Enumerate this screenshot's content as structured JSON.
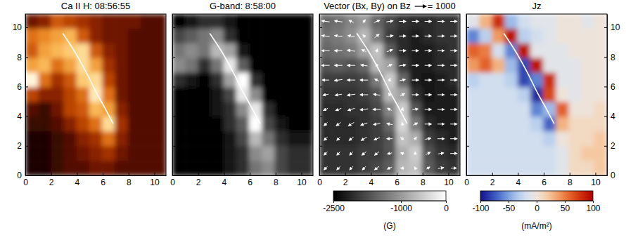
{
  "chart_data": [
    {
      "type": "heatmap",
      "title": "Ca II H: 08:56:55",
      "color": "hot",
      "xlim": [
        0,
        10.9
      ],
      "ylim": [
        0,
        10.9
      ],
      "xticks": [
        0,
        2,
        4,
        6,
        8,
        10
      ],
      "yticks": [
        0,
        2,
        4,
        6,
        8,
        10
      ],
      "cells": [
        [
          0.35,
          0.4,
          0.55,
          0.5,
          0.45,
          0.4,
          0.35,
          0.35,
          0.35,
          0.3,
          0.3
        ],
        [
          0.6,
          0.65,
          0.7,
          0.75,
          0.55,
          0.4,
          0.35,
          0.35,
          0.3,
          0.3,
          0.3
        ],
        [
          0.55,
          0.7,
          0.75,
          0.8,
          0.85,
          0.55,
          0.4,
          0.35,
          0.3,
          0.3,
          0.3
        ],
        [
          0.7,
          0.75,
          0.6,
          0.7,
          0.85,
          0.7,
          0.45,
          0.35,
          0.3,
          0.3,
          0.3
        ],
        [
          0.95,
          0.6,
          0.45,
          0.55,
          0.8,
          0.85,
          0.5,
          0.35,
          0.3,
          0.3,
          0.3
        ],
        [
          0.5,
          0.4,
          0.4,
          0.5,
          0.6,
          0.9,
          0.6,
          0.35,
          0.3,
          0.3,
          0.3
        ],
        [
          0.3,
          0.25,
          0.35,
          0.5,
          0.55,
          0.75,
          0.7,
          0.4,
          0.3,
          0.3,
          0.3
        ],
        [
          0.25,
          0.25,
          0.3,
          0.4,
          0.5,
          0.6,
          0.85,
          0.45,
          0.3,
          0.3,
          0.3
        ],
        [
          0.2,
          0.2,
          0.25,
          0.3,
          0.4,
          0.45,
          0.6,
          0.4,
          0.3,
          0.3,
          0.3
        ],
        [
          0.2,
          0.2,
          0.25,
          0.3,
          0.35,
          0.4,
          0.45,
          0.35,
          0.3,
          0.3,
          0.3
        ],
        [
          0.2,
          0.2,
          0.25,
          0.3,
          0.3,
          0.35,
          0.35,
          0.3,
          0.3,
          0.3,
          0.3
        ]
      ],
      "line": {
        "x": [
          2.9,
          3.8,
          4.7,
          5.5,
          6.2,
          6.8
        ],
        "y": [
          9.6,
          8.4,
          7.0,
          5.6,
          4.5,
          3.5
        ],
        "color": "#ffffff"
      }
    },
    {
      "type": "heatmap",
      "title": "G-band: 8:58:00",
      "color": "gray",
      "tick_labels": "x",
      "xlim": [
        0,
        10.9
      ],
      "ylim": [
        0,
        10.9
      ],
      "xticks": [
        0,
        2,
        4,
        6,
        8,
        10
      ],
      "yticks": [
        0,
        2,
        4,
        6,
        8,
        10
      ],
      "cells": [
        [
          0.2,
          0.25,
          0.3,
          0.3,
          0.25,
          0.2,
          0.2,
          0.2,
          0.2,
          0.2,
          0.2
        ],
        [
          0.35,
          0.4,
          0.45,
          0.5,
          0.3,
          0.2,
          0.2,
          0.2,
          0.2,
          0.2,
          0.2
        ],
        [
          0.45,
          0.5,
          0.45,
          0.6,
          0.55,
          0.25,
          0.2,
          0.2,
          0.2,
          0.2,
          0.2
        ],
        [
          0.5,
          0.45,
          0.3,
          0.45,
          0.7,
          0.4,
          0.2,
          0.2,
          0.2,
          0.2,
          0.2
        ],
        [
          0.3,
          0.25,
          0.2,
          0.3,
          0.55,
          0.75,
          0.3,
          0.2,
          0.2,
          0.2,
          0.2
        ],
        [
          0.2,
          0.2,
          0.2,
          0.25,
          0.35,
          0.7,
          0.5,
          0.2,
          0.2,
          0.2,
          0.2
        ],
        [
          0.2,
          0.2,
          0.2,
          0.25,
          0.3,
          0.5,
          0.7,
          0.3,
          0.2,
          0.2,
          0.2
        ],
        [
          0.2,
          0.2,
          0.2,
          0.2,
          0.3,
          0.4,
          0.75,
          0.35,
          0.25,
          0.2,
          0.2
        ],
        [
          0.2,
          0.2,
          0.2,
          0.2,
          0.25,
          0.35,
          0.6,
          0.45,
          0.3,
          0.25,
          0.25
        ],
        [
          0.2,
          0.2,
          0.2,
          0.2,
          0.25,
          0.3,
          0.5,
          0.55,
          0.35,
          0.3,
          0.3
        ],
        [
          0.2,
          0.2,
          0.2,
          0.2,
          0.25,
          0.3,
          0.45,
          0.5,
          0.35,
          0.3,
          0.3
        ]
      ],
      "line": {
        "x": [
          2.9,
          3.8,
          4.7,
          5.5,
          6.2,
          6.8
        ],
        "y": [
          9.6,
          8.4,
          7.0,
          5.6,
          4.5,
          3.5
        ],
        "color": "#ffffff"
      }
    },
    {
      "type": "heatmap",
      "title": "Vector (Bx, By) on Bz",
      "color": "gray",
      "tick_labels": "x",
      "xlim": [
        0,
        10.9
      ],
      "ylim": [
        0,
        10.9
      ],
      "xticks": [
        0,
        2,
        4,
        6,
        8,
        10
      ],
      "yticks": [
        0,
        2,
        4,
        6,
        8,
        10
      ],
      "cells": [
        [
          -1500,
          -1400,
          -1200,
          -1000,
          -1500,
          -1800,
          -2000,
          -2100,
          -2100,
          -2000,
          -2000
        ],
        [
          -1400,
          -1300,
          -1100,
          -700,
          -1300,
          -1900,
          -2100,
          -2200,
          -2100,
          -2000,
          -2000
        ],
        [
          -1500,
          -1400,
          -1300,
          -900,
          -600,
          -1600,
          -2100,
          -2200,
          -2200,
          -2100,
          -2000
        ],
        [
          -1700,
          -1600,
          -1700,
          -1500,
          -700,
          -900,
          -1900,
          -2200,
          -2200,
          -2100,
          -2100
        ],
        [
          -1900,
          -1900,
          -1900,
          -1800,
          -1300,
          -500,
          -1500,
          -2200,
          -2300,
          -2200,
          -2100
        ],
        [
          -2000,
          -2000,
          -2000,
          -1900,
          -1700,
          -700,
          -900,
          -2000,
          -2300,
          -2200,
          -2200
        ],
        [
          -2100,
          -2100,
          -2000,
          -2000,
          -1800,
          -1200,
          -500,
          -1700,
          -2200,
          -2200,
          -2200
        ],
        [
          -2100,
          -2100,
          -2100,
          -2000,
          -1900,
          -1500,
          -400,
          -1300,
          -2100,
          -2200,
          -2200
        ],
        [
          -2100,
          -2100,
          -2100,
          -2000,
          -1900,
          -1700,
          -600,
          -800,
          -1900,
          -2100,
          -2200
        ],
        [
          -2000,
          -2000,
          -2000,
          -1900,
          -1900,
          -1700,
          -800,
          -500,
          -1700,
          -2000,
          -2100
        ],
        [
          -2000,
          -2000,
          -2000,
          -1900,
          -1800,
          -1600,
          -700,
          -600,
          -1600,
          -1900,
          -2000
        ]
      ],
      "vectors": {
        "bx": [
          [
            -700,
            -700,
            -400,
            200,
            500,
            600,
            600,
            600,
            600,
            600,
            600
          ],
          [
            -700,
            -700,
            -600,
            -200,
            400,
            600,
            600,
            600,
            600,
            600,
            600
          ],
          [
            -700,
            -700,
            -700,
            -400,
            100,
            500,
            600,
            600,
            600,
            600,
            600
          ],
          [
            -700,
            -700,
            -700,
            -600,
            -200,
            400,
            600,
            600,
            600,
            600,
            600
          ],
          [
            -600,
            -700,
            -700,
            -700,
            -400,
            100,
            500,
            600,
            600,
            600,
            600
          ],
          [
            -500,
            -600,
            -700,
            -700,
            -600,
            -200,
            400,
            600,
            600,
            600,
            600
          ],
          [
            -400,
            -500,
            -600,
            -700,
            -700,
            -400,
            100,
            500,
            600,
            600,
            600
          ],
          [
            -300,
            -400,
            -500,
            -600,
            -600,
            -500,
            -100,
            400,
            600,
            600,
            600
          ],
          [
            -300,
            -300,
            -400,
            -500,
            -500,
            -500,
            -300,
            200,
            500,
            600,
            600
          ],
          [
            -300,
            -300,
            -300,
            -400,
            -400,
            -400,
            -300,
            0,
            400,
            500,
            600
          ],
          [
            -300,
            -300,
            -300,
            -300,
            -400,
            -400,
            -300,
            -100,
            300,
            500,
            500
          ]
        ],
        "by": [
          [
            100,
            100,
            200,
            300,
            200,
            100,
            0,
            0,
            0,
            0,
            0
          ],
          [
            100,
            100,
            100,
            200,
            300,
            100,
            0,
            0,
            0,
            0,
            0
          ],
          [
            0,
            0,
            100,
            200,
            300,
            200,
            0,
            0,
            0,
            0,
            0
          ],
          [
            0,
            0,
            0,
            100,
            300,
            200,
            100,
            0,
            0,
            0,
            0
          ],
          [
            0,
            -100,
            0,
            0,
            200,
            300,
            100,
            0,
            0,
            0,
            0
          ],
          [
            -100,
            -100,
            -100,
            0,
            100,
            300,
            200,
            0,
            0,
            0,
            0
          ],
          [
            -200,
            -200,
            -200,
            -100,
            0,
            200,
            300,
            100,
            0,
            0,
            0
          ],
          [
            -300,
            -300,
            -300,
            -200,
            -100,
            100,
            300,
            200,
            0,
            0,
            0
          ],
          [
            -300,
            -300,
            -300,
            -300,
            -200,
            0,
            200,
            300,
            100,
            0,
            0
          ],
          [
            -300,
            -300,
            -300,
            -300,
            -300,
            -100,
            100,
            300,
            200,
            100,
            0
          ],
          [
            -300,
            -300,
            -300,
            -300,
            -300,
            -200,
            0,
            200,
            200,
            100,
            0
          ]
        ]
      },
      "vector_key": {
        "value": 1000,
        "label": "= 1000"
      },
      "colorbar": {
        "range": [
          -2500,
          0
        ],
        "ticks": [
          -2500,
          -1000,
          0
        ],
        "label": "(G)"
      },
      "line": {
        "x": [
          2.9,
          3.8,
          4.7,
          5.5,
          6.2,
          6.8
        ],
        "y": [
          9.6,
          8.4,
          7.0,
          5.6,
          4.5,
          3.5
        ],
        "color": "#ffffff"
      }
    },
    {
      "type": "heatmap",
      "title": "Jz",
      "color": "bwr",
      "xlim": [
        0,
        10.9
      ],
      "ylim": [
        0,
        10.9
      ],
      "xticks": [
        0,
        2,
        4,
        6,
        8,
        10
      ],
      "yticks": [
        0,
        2,
        4,
        6,
        8,
        10
      ],
      "cells": [
        [
          -10,
          30,
          80,
          -40,
          -20,
          -10,
          -10,
          0,
          0,
          -10,
          0
        ],
        [
          -60,
          -30,
          40,
          90,
          -30,
          -20,
          -10,
          0,
          0,
          0,
          0
        ],
        [
          60,
          50,
          -20,
          -60,
          90,
          -10,
          -10,
          -10,
          0,
          0,
          0
        ],
        [
          40,
          60,
          30,
          -40,
          -80,
          90,
          -10,
          -10,
          -10,
          0,
          0
        ],
        [
          -30,
          -20,
          -20,
          -30,
          -80,
          -60,
          80,
          -10,
          -10,
          0,
          0
        ],
        [
          -20,
          -20,
          -20,
          -20,
          -30,
          -90,
          70,
          0,
          -10,
          0,
          0
        ],
        [
          -20,
          -20,
          -20,
          -20,
          -20,
          -60,
          -40,
          60,
          0,
          0,
          10
        ],
        [
          -20,
          -20,
          -20,
          -20,
          -20,
          -30,
          -70,
          30,
          10,
          10,
          10
        ],
        [
          -20,
          -20,
          -20,
          -20,
          -20,
          -20,
          -30,
          0,
          10,
          10,
          20
        ],
        [
          -20,
          -20,
          -20,
          -20,
          -20,
          -20,
          -20,
          -10,
          10,
          20,
          20
        ],
        [
          -20,
          -20,
          -20,
          -20,
          -20,
          -20,
          -20,
          -10,
          10,
          10,
          20
        ]
      ],
      "colorbar": {
        "range": [
          -100,
          100
        ],
        "ticks": [
          -100,
          -50,
          0,
          50,
          100
        ],
        "label": "(mA/m²)"
      },
      "line": {
        "x": [
          2.9,
          3.8,
          4.7,
          5.5,
          6.2,
          6.8
        ],
        "y": [
          9.6,
          8.4,
          7.0,
          5.6,
          4.5,
          3.5
        ],
        "color": "#ffffff"
      }
    }
  ]
}
